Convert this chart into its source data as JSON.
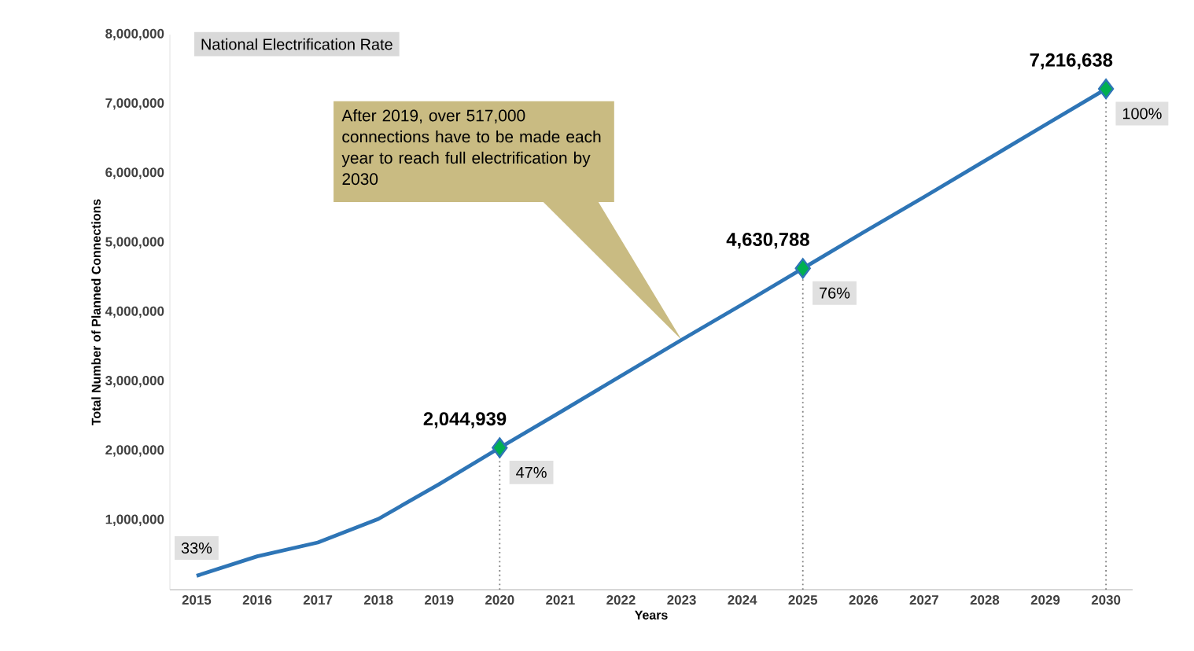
{
  "chart_data": {
    "type": "line",
    "title": "National Electrification Rate",
    "xlabel": "Years",
    "ylabel": "Total Number of Planned Connections",
    "x": [
      2015,
      2016,
      2017,
      2018,
      2019,
      2020,
      2021,
      2022,
      2023,
      2024,
      2025,
      2026,
      2027,
      2028,
      2029,
      2030
    ],
    "series": [
      {
        "color": "#2e75b6",
        "values": [
          200000,
          480000,
          680000,
          1020000,
          1520000,
          2044939,
          2560000,
          3080000,
          3600000,
          4110000,
          4630788,
          5150000,
          5660000,
          6180000,
          6700000,
          7216638
        ]
      },
      {
        "type": "scatter",
        "marker": "diamond",
        "color": "#00b050",
        "x": [
          2020,
          2025,
          2030
        ],
        "values": [
          2044939,
          4630788,
          7216638
        ],
        "value_labels": [
          "2,044,939",
          "4,630,788",
          "7,216,638"
        ]
      }
    ],
    "xlim": [
      2014.56,
      2030.44
    ],
    "xticks": [
      2015,
      2016,
      2017,
      2018,
      2019,
      2020,
      2021,
      2022,
      2023,
      2024,
      2025,
      2026,
      2027,
      2028,
      2029,
      2030
    ],
    "ylim": [
      0,
      8000000
    ],
    "yticks": [
      {
        "value": 1000000,
        "label": "1,000,000"
      },
      {
        "value": 2000000,
        "label": "2,000,000"
      },
      {
        "value": 3000000,
        "label": "3,000,000"
      },
      {
        "value": 4000000,
        "label": "4,000,000"
      },
      {
        "value": 5000000,
        "label": "5,000,000"
      },
      {
        "value": 6000000,
        "label": "6,000,000"
      },
      {
        "value": 7000000,
        "label": "7,000,000"
      },
      {
        "value": 8000000,
        "label": "8,000,000"
      }
    ],
    "ref_lines": [
      {
        "axis": "x",
        "value": 2020,
        "line_style": "dotted",
        "color": "#7f7f7f"
      },
      {
        "axis": "x",
        "value": 2025,
        "line_style": "dotted",
        "color": "#7f7f7f"
      },
      {
        "axis": "x",
        "value": 2030,
        "line_style": "dotted",
        "color": "#7f7f7f"
      }
    ],
    "annotations": [
      {
        "text": "33%",
        "x": 2015,
        "y": 200000
      },
      {
        "text": "47%",
        "x": 2020,
        "y": 2044939
      },
      {
        "text": "76%",
        "x": 2025,
        "y": 4630788
      },
      {
        "text": "100%",
        "x": 2030,
        "y": 7216638
      },
      "After 2019, over 517,000 connections have to be made each year to reach full electrification by 2030"
    ],
    "grid": false
  }
}
